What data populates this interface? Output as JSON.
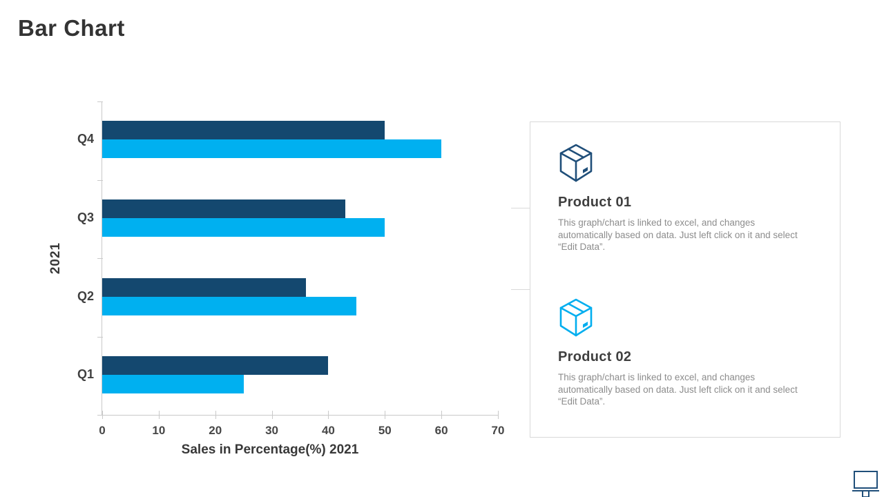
{
  "slide": {
    "title": "Bar Chart",
    "colors": {
      "navy": "#14486F",
      "cyan": "#00B0F0",
      "text_dark": "#383838",
      "text_gray": "#8C8C8C",
      "axis_line": "#C9C9C9",
      "panel_border": "#D9D9D9"
    }
  },
  "chart_data": {
    "type": "bar",
    "orientation": "horizontal",
    "category_order": "top_to_bottom",
    "categories": [
      "Q4",
      "Q3",
      "Q2",
      "Q1"
    ],
    "series": [
      {
        "name": "Product 01",
        "color": "#14486F",
        "values": [
          50,
          43,
          36,
          40
        ]
      },
      {
        "name": "Product 02",
        "color": "#00B0F0",
        "values": [
          60,
          50,
          45,
          25
        ]
      }
    ],
    "xlabel": "Sales in Percentage(%)  2021",
    "ylabel": "2021",
    "xlim": [
      0,
      70
    ],
    "xticks": [
      0,
      10,
      20,
      30,
      40,
      50,
      60,
      70
    ],
    "grid": false,
    "legend": "none"
  },
  "panel": {
    "items": [
      {
        "icon": "box-icon",
        "icon_color": "#1F4E79",
        "title": "Product 01",
        "description": "This graph/chart is linked to excel, and changes\nautomatically based on data. Just left click on it and select\n“Edit Data”."
      },
      {
        "icon": "box-icon",
        "icon_color": "#00AEEF",
        "title": "Product 02",
        "description": "This graph/chart is linked to excel, and changes\nautomatically based on data. Just left click on it and select\n“Edit Data”."
      }
    ]
  },
  "footer": {
    "icon": "monitor-icon"
  }
}
